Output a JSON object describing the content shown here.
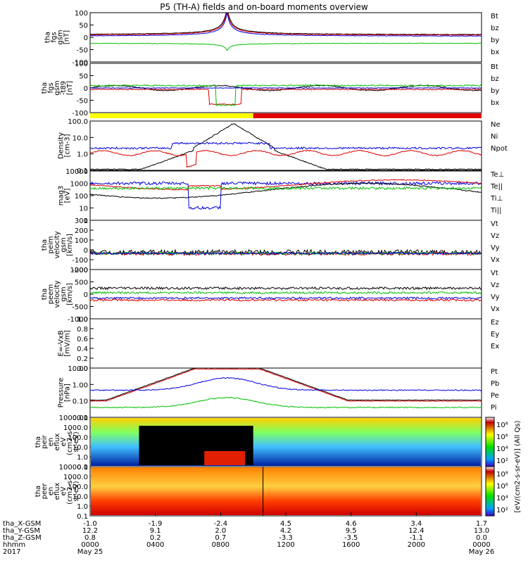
{
  "title": "P5 (TH-A) fields and on-board moments overview",
  "colors": {
    "black": "#000000",
    "red": "#e00000",
    "green": "#00c000",
    "blue": "#0000e0",
    "yellow": "#ffff00"
  },
  "panels": [
    {
      "ylabel": [
        "tha",
        "fgs",
        "gsm",
        "[nT]"
      ],
      "ticks": [
        "100",
        "50",
        "0",
        "-50",
        "-100"
      ],
      "legend": [
        "Bt",
        "bz",
        "by",
        "bx"
      ],
      "legend_colors": [
        "black",
        "red",
        "green",
        "blue"
      ]
    },
    {
      "ylabel": [
        "tha",
        "fgs",
        "gsm",
        "-t89",
        "[nT]"
      ],
      "ticks": [
        "100",
        "50",
        "0",
        "-50",
        "-100"
      ],
      "legend": [
        "Bt",
        "bz",
        "by",
        "bx"
      ],
      "legend_colors": [
        "black",
        "red",
        "green",
        "blue"
      ]
    },
    {
      "ylabel": [
        "Density",
        "[cm-3]"
      ],
      "ticks": [
        "100.0",
        "10.0",
        "1.0",
        "0.1"
      ],
      "legend": [
        "Ne",
        "Ni",
        "Npot"
      ],
      "legend_colors": [
        "red",
        "black",
        "blue"
      ]
    },
    {
      "ylabel": [
        "mag3",
        "[eV]"
      ],
      "ticks": [
        "10000",
        "1000",
        "100",
        "10",
        "1"
      ],
      "legend": [
        "Te⊥",
        "Te||",
        "Ti⊥",
        "Ti||"
      ],
      "legend_colors": [
        "red",
        "black",
        "red",
        "green"
      ]
    },
    {
      "ylabel": [
        "tha",
        "peim",
        "velocity",
        "gsm",
        "[km/s]"
      ],
      "ticks": [
        "300",
        "200",
        "100",
        "0",
        "-100",
        "-200"
      ],
      "legend": [
        "Vt",
        "Vz",
        "Vy",
        "Vx"
      ],
      "legend_colors": [
        "black",
        "red",
        "green",
        "blue"
      ]
    },
    {
      "ylabel": [
        "tha",
        "peem",
        "velocity",
        "gsm",
        "[km/s]"
      ],
      "ticks": [
        "1000",
        "500",
        "0",
        "-500",
        "-1000"
      ],
      "legend": [
        "Vt",
        "Vz",
        "Vy",
        "Vx"
      ],
      "legend_colors": [
        "black",
        "red",
        "green",
        "blue"
      ]
    },
    {
      "ylabel": [
        "E=-VxB",
        "[mV/m]"
      ],
      "ticks": [
        "1.0",
        "0.8",
        "0.6",
        "0.4",
        "0.2",
        "0.0"
      ],
      "legend": [
        "Ez",
        "Ey",
        "Ex"
      ],
      "legend_colors": [
        "red",
        "green",
        "blue"
      ]
    },
    {
      "ylabel": [
        "Pressure",
        "[nPa]"
      ],
      "ticks": [
        "10.00",
        "1.00",
        "0.10",
        "0.01"
      ],
      "legend": [
        "Pt",
        "Pb",
        "Pe",
        "Pi"
      ],
      "legend_colors": [
        "black",
        "red",
        "green",
        "blue"
      ]
    },
    {
      "ylabel": [
        "tha",
        "peir",
        "en",
        "eflux",
        "eV",
        "(cm2-s-",
        "sr-eV)"
      ],
      "ticks": [
        "10000.0",
        "1000.0",
        "100.0",
        "10.0",
        "1.0",
        "0.1"
      ]
    },
    {
      "ylabel": [
        "tha",
        "peer",
        "en",
        "eflux",
        "eV",
        "(cm2-s-",
        "sr-eV)"
      ],
      "ticks": [
        "10000.0",
        "1000.0",
        "100.0",
        "10.0",
        "1.0",
        "0.1"
      ]
    }
  ],
  "colorbar": {
    "label": "[eV/(cm2-s-sr-eV)] (All Qs)",
    "ticks1": [
      "10⁸",
      "10⁶",
      "10⁴",
      "10²"
    ],
    "ticks2": [
      "10⁸",
      "10⁶",
      "10⁴",
      "10²"
    ]
  },
  "xaxis": {
    "row_labels": [
      "tha_X-GSM",
      "tha_Y-GSM",
      "tha_Z-GSM",
      "hhmm",
      "2017"
    ],
    "columns": [
      {
        "x": "-1.0",
        "y": "12.2",
        "z": "0.8",
        "hhmm": "0000",
        "date": "May 25"
      },
      {
        "x": "-1.9",
        "y": "9.1",
        "z": "0.2",
        "hhmm": "0400",
        "date": ""
      },
      {
        "x": "-2.4",
        "y": "2.0",
        "z": "0.7",
        "hhmm": "0800",
        "date": ""
      },
      {
        "x": "4.5",
        "y": "4.2",
        "z": "-3.3",
        "hhmm": "1200",
        "date": ""
      },
      {
        "x": "4.6",
        "y": "9.5",
        "z": "-3.5",
        "hhmm": "1600",
        "date": ""
      },
      {
        "x": "3.4",
        "y": "12.4",
        "z": "-1.1",
        "hhmm": "2000",
        "date": ""
      },
      {
        "x": "1.7",
        "y": "13.0",
        "z": "0.0",
        "hhmm": "0000",
        "date": "May 26"
      }
    ]
  },
  "chart_data": {
    "type": "line",
    "panels": 10,
    "x_range_hours": [
      0,
      24
    ],
    "bar_segments": [
      {
        "from": 0,
        "to": 10,
        "color": "yellow"
      },
      {
        "from": 10,
        "to": 24,
        "color": "red"
      }
    ],
    "pressure_peak_hours": [
      7.5,
      11
    ],
    "grid": false
  }
}
